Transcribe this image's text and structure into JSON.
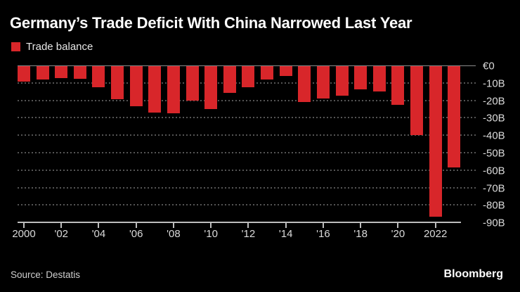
{
  "header": {
    "title": "Germany’s Trade Deficit With China Narrowed Last Year",
    "legend": {
      "label": "Trade balance",
      "swatch_color": "#d8262a"
    }
  },
  "footer": {
    "source": "Source: Destatis",
    "brand": "Bloomberg"
  },
  "colors": {
    "background": "#000000",
    "bar": "#d8262a",
    "title_text": "#ffffff",
    "axis_text": "#dadada",
    "gridline": "#545454",
    "zero_line": "#8a8a8a",
    "axis_line": "#bdbdbd"
  },
  "chart_data": {
    "type": "bar",
    "title": "Germany’s Trade Deficit With China Narrowed Last Year",
    "series_name": "Trade balance",
    "unit": "billion EUR",
    "categories": [
      2000,
      2001,
      2002,
      2003,
      2004,
      2005,
      2006,
      2007,
      2008,
      2009,
      2010,
      2011,
      2012,
      2013,
      2014,
      2015,
      2016,
      2017,
      2018,
      2019,
      2020,
      2021,
      2022,
      2023
    ],
    "values": [
      -8.8,
      -7.8,
      -6.8,
      -7.4,
      -11.9,
      -19.0,
      -22.9,
      -26.8,
      -27.0,
      -19.6,
      -24.4,
      -15.3,
      -11.9,
      -7.6,
      -5.5,
      -20.4,
      -18.6,
      -16.8,
      -13.2,
      -14.6,
      -22.2,
      -39.6,
      -86.1,
      -58.0
    ],
    "ylim": [
      -90,
      0
    ],
    "ytick_interval": 10,
    "ytick_labels": [
      "€0",
      "-10B",
      "-20B",
      "-30B",
      "-40B",
      "-50B",
      "-60B",
      "-70B",
      "-80B",
      "-90B"
    ],
    "xtick_labels": [
      "2000",
      "'02",
      "'04",
      "'06",
      "'08",
      "'10",
      "'12",
      "'14",
      "'16",
      "'18",
      "'20",
      "2022"
    ],
    "grid": "horizontal-dotted",
    "legend_position": "top-left"
  }
}
